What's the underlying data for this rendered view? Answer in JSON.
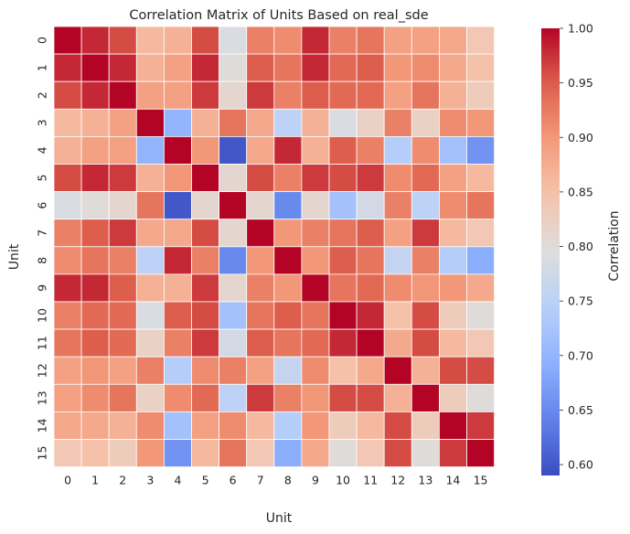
{
  "chart_data": {
    "type": "heatmap",
    "title": "Correlation Matrix of Units Based on real_sde",
    "xlabel": "Unit",
    "ylabel": "Unit",
    "x_categories": [
      "0",
      "1",
      "2",
      "3",
      "4",
      "5",
      "6",
      "7",
      "8",
      "9",
      "10",
      "11",
      "12",
      "13",
      "14",
      "15"
    ],
    "y_categories": [
      "0",
      "1",
      "2",
      "3",
      "4",
      "5",
      "6",
      "7",
      "8",
      "9",
      "10",
      "11",
      "12",
      "13",
      "14",
      "15"
    ],
    "values": [
      [
        1.0,
        0.98,
        0.96,
        0.86,
        0.87,
        0.96,
        0.79,
        0.92,
        0.91,
        0.98,
        0.92,
        0.93,
        0.89,
        0.89,
        0.88,
        0.84
      ],
      [
        0.98,
        1.0,
        0.98,
        0.87,
        0.89,
        0.98,
        0.8,
        0.95,
        0.93,
        0.98,
        0.94,
        0.95,
        0.9,
        0.91,
        0.88,
        0.85
      ],
      [
        0.96,
        0.98,
        1.0,
        0.89,
        0.89,
        0.97,
        0.81,
        0.97,
        0.92,
        0.95,
        0.94,
        0.94,
        0.89,
        0.93,
        0.87,
        0.83
      ],
      [
        0.86,
        0.87,
        0.89,
        1.0,
        0.7,
        0.87,
        0.93,
        0.88,
        0.75,
        0.87,
        0.79,
        0.82,
        0.92,
        0.82,
        0.91,
        0.9
      ],
      [
        0.87,
        0.89,
        0.89,
        0.7,
        1.0,
        0.9,
        0.6,
        0.88,
        0.98,
        0.87,
        0.95,
        0.92,
        0.74,
        0.91,
        0.72,
        0.66
      ],
      [
        0.96,
        0.98,
        0.97,
        0.87,
        0.9,
        1.0,
        0.81,
        0.96,
        0.92,
        0.97,
        0.96,
        0.97,
        0.91,
        0.94,
        0.89,
        0.86
      ],
      [
        0.79,
        0.8,
        0.81,
        0.93,
        0.6,
        0.81,
        1.0,
        0.81,
        0.65,
        0.81,
        0.72,
        0.78,
        0.92,
        0.75,
        0.91,
        0.93
      ],
      [
        0.92,
        0.95,
        0.97,
        0.88,
        0.88,
        0.96,
        0.81,
        1.0,
        0.9,
        0.92,
        0.93,
        0.95,
        0.89,
        0.97,
        0.86,
        0.84
      ],
      [
        0.91,
        0.93,
        0.92,
        0.75,
        0.98,
        0.92,
        0.65,
        0.9,
        1.0,
        0.9,
        0.95,
        0.93,
        0.76,
        0.92,
        0.74,
        0.69
      ],
      [
        0.98,
        0.98,
        0.95,
        0.87,
        0.87,
        0.97,
        0.81,
        0.92,
        0.9,
        1.0,
        0.93,
        0.94,
        0.91,
        0.9,
        0.9,
        0.88
      ],
      [
        0.92,
        0.94,
        0.94,
        0.79,
        0.95,
        0.96,
        0.72,
        0.93,
        0.95,
        0.93,
        1.0,
        0.98,
        0.85,
        0.96,
        0.83,
        0.8
      ],
      [
        0.93,
        0.95,
        0.94,
        0.82,
        0.92,
        0.97,
        0.78,
        0.95,
        0.93,
        0.94,
        0.98,
        1.0,
        0.88,
        0.96,
        0.86,
        0.84
      ],
      [
        0.89,
        0.9,
        0.89,
        0.92,
        0.74,
        0.91,
        0.92,
        0.89,
        0.76,
        0.91,
        0.85,
        0.88,
        1.0,
        0.87,
        0.96,
        0.96
      ],
      [
        0.89,
        0.91,
        0.93,
        0.82,
        0.91,
        0.94,
        0.75,
        0.97,
        0.92,
        0.9,
        0.96,
        0.96,
        0.87,
        1.0,
        0.83,
        0.8
      ],
      [
        0.88,
        0.88,
        0.87,
        0.91,
        0.72,
        0.89,
        0.91,
        0.86,
        0.74,
        0.9,
        0.83,
        0.86,
        0.96,
        0.83,
        1.0,
        0.97
      ],
      [
        0.84,
        0.85,
        0.83,
        0.9,
        0.66,
        0.86,
        0.93,
        0.84,
        0.69,
        0.88,
        0.8,
        0.84,
        0.96,
        0.8,
        0.97,
        1.0
      ]
    ],
    "vmin": 0.59,
    "vmax": 1.0,
    "colormap": "coolwarm",
    "colorbar": {
      "label": "Correlation",
      "ticks": [
        "0.60",
        "0.65",
        "0.70",
        "0.75",
        "0.80",
        "0.85",
        "0.90",
        "0.95",
        "1.00"
      ]
    },
    "grid": true
  }
}
